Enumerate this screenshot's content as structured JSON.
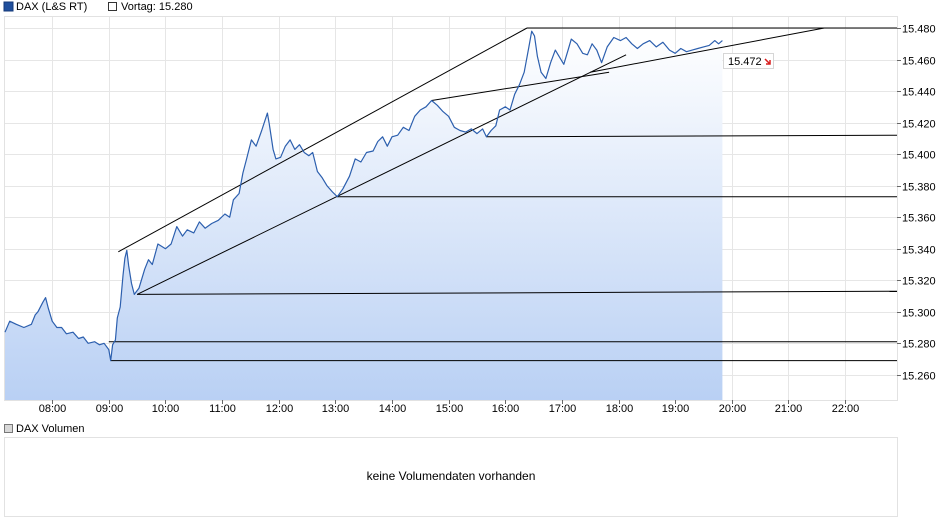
{
  "legend": {
    "main_label": "DAX (L&S RT)",
    "prev_label": "Vortag: 15.280",
    "volume_label": "DAX Volumen",
    "main_color": "#1f4e9c"
  },
  "volume": {
    "message": "keine Volumendaten vorhanden"
  },
  "chart_data": {
    "type": "line",
    "title": "",
    "xlabel": "",
    "ylabel": "",
    "x_ticks": [
      "08:00",
      "09:00",
      "10:00",
      "11:00",
      "12:00",
      "13:00",
      "14:00",
      "15:00",
      "16:00",
      "17:00",
      "18:00",
      "19:00",
      "20:00",
      "21:00",
      "22:00"
    ],
    "y_ticks": [
      "15.260",
      "15.280",
      "15.300",
      "15.320",
      "15.340",
      "15.360",
      "15.380",
      "15.400",
      "15.420",
      "15.440",
      "15.460",
      "15.480"
    ],
    "xlim": [
      "07:10",
      "22:55"
    ],
    "ylim": [
      15.244,
      15.487
    ],
    "grid": true,
    "area_fill": true,
    "line_color": "#2c5fae",
    "fill_color_top": "#ffffff",
    "fill_color_bottom": "#b9d0f4",
    "last_value_label": "15.472",
    "last_value_time": "19:50",
    "series": [
      {
        "values": [
          [
            "07:10",
            15.287
          ],
          [
            "07:15",
            15.294
          ],
          [
            "07:22",
            15.292
          ],
          [
            "07:30",
            15.29
          ],
          [
            "07:38",
            15.292
          ],
          [
            "07:42",
            15.298
          ],
          [
            "07:45",
            15.3
          ],
          [
            "07:50",
            15.306
          ],
          [
            "07:53",
            15.309
          ],
          [
            "07:56",
            15.302
          ],
          [
            "08:00",
            15.294
          ],
          [
            "08:05",
            15.29
          ],
          [
            "08:10",
            15.29
          ],
          [
            "08:15",
            15.286
          ],
          [
            "08:22",
            15.287
          ],
          [
            "08:28",
            15.283
          ],
          [
            "08:33",
            15.284
          ],
          [
            "08:38",
            15.28
          ],
          [
            "08:45",
            15.281
          ],
          [
            "08:50",
            15.279
          ],
          [
            "08:55",
            15.28
          ],
          [
            "09:00",
            15.276
          ],
          [
            "09:02",
            15.269
          ],
          [
            "09:04",
            15.279
          ],
          [
            "09:07",
            15.282
          ],
          [
            "09:09",
            15.296
          ],
          [
            "09:12",
            15.303
          ],
          [
            "09:15",
            15.323
          ],
          [
            "09:17",
            15.334
          ],
          [
            "09:19",
            15.339
          ],
          [
            "09:21",
            15.329
          ],
          [
            "09:24",
            15.318
          ],
          [
            "09:27",
            15.311
          ],
          [
            "09:32",
            15.315
          ],
          [
            "09:38",
            15.327
          ],
          [
            "09:42",
            15.333
          ],
          [
            "09:46",
            15.33
          ],
          [
            "09:52",
            15.343
          ],
          [
            "10:00",
            15.34
          ],
          [
            "10:06",
            15.343
          ],
          [
            "10:12",
            15.354
          ],
          [
            "10:18",
            15.348
          ],
          [
            "10:23",
            15.352
          ],
          [
            "10:30",
            15.35
          ],
          [
            "10:36",
            15.357
          ],
          [
            "10:42",
            15.353
          ],
          [
            "10:49",
            15.356
          ],
          [
            "10:56",
            15.358
          ],
          [
            "11:03",
            15.362
          ],
          [
            "11:08",
            15.36
          ],
          [
            "11:12",
            15.371
          ],
          [
            "11:18",
            15.375
          ],
          [
            "11:22",
            15.388
          ],
          [
            "11:26",
            15.397
          ],
          [
            "11:31",
            15.409
          ],
          [
            "11:36",
            15.405
          ],
          [
            "11:42",
            15.415
          ],
          [
            "11:48",
            15.426
          ],
          [
            "11:50",
            15.419
          ],
          [
            "11:54",
            15.403
          ],
          [
            "11:57",
            15.397
          ],
          [
            "12:02",
            15.398
          ],
          [
            "12:07",
            15.405
          ],
          [
            "12:12",
            15.409
          ],
          [
            "12:17",
            15.403
          ],
          [
            "12:22",
            15.406
          ],
          [
            "12:27",
            15.401
          ],
          [
            "12:32",
            15.399
          ],
          [
            "12:36",
            15.401
          ],
          [
            "12:41",
            15.389
          ],
          [
            "12:46",
            15.385
          ],
          [
            "12:51",
            15.38
          ],
          [
            "12:57",
            15.376
          ],
          [
            "13:02",
            15.373
          ],
          [
            "13:08",
            15.378
          ],
          [
            "13:15",
            15.386
          ],
          [
            "13:21",
            15.397
          ],
          [
            "13:27",
            15.395
          ],
          [
            "13:33",
            15.401
          ],
          [
            "13:40",
            15.402
          ],
          [
            "13:45",
            15.408
          ],
          [
            "13:50",
            15.411
          ],
          [
            "13:55",
            15.405
          ],
          [
            "14:00",
            15.411
          ],
          [
            "14:06",
            15.412
          ],
          [
            "14:12",
            15.417
          ],
          [
            "14:18",
            15.415
          ],
          [
            "14:24",
            15.424
          ],
          [
            "14:30",
            15.428
          ],
          [
            "14:36",
            15.43
          ],
          [
            "14:42",
            15.434
          ],
          [
            "14:48",
            15.431
          ],
          [
            "14:54",
            15.427
          ],
          [
            "15:00",
            15.424
          ],
          [
            "15:06",
            15.417
          ],
          [
            "15:12",
            15.415
          ],
          [
            "15:18",
            15.414
          ],
          [
            "15:24",
            15.416
          ],
          [
            "15:30",
            15.413
          ],
          [
            "15:36",
            15.416
          ],
          [
            "15:40",
            15.411
          ],
          [
            "15:45",
            15.415
          ],
          [
            "15:50",
            15.418
          ],
          [
            "15:54",
            15.428
          ],
          [
            "16:00",
            15.43
          ],
          [
            "16:05",
            15.428
          ],
          [
            "16:10",
            15.438
          ],
          [
            "16:15",
            15.444
          ],
          [
            "16:20",
            15.452
          ],
          [
            "16:25",
            15.468
          ],
          [
            "16:28",
            15.478
          ],
          [
            "16:31",
            15.475
          ],
          [
            "16:34",
            15.462
          ],
          [
            "16:38",
            15.452
          ],
          [
            "16:43",
            15.448
          ],
          [
            "16:48",
            15.458
          ],
          [
            "16:53",
            15.466
          ],
          [
            "16:57",
            15.462
          ],
          [
            "17:02",
            15.457
          ],
          [
            "17:06",
            15.465
          ],
          [
            "17:10",
            15.473
          ],
          [
            "17:16",
            15.47
          ],
          [
            "17:22",
            15.464
          ],
          [
            "17:27",
            15.463
          ],
          [
            "17:32",
            15.47
          ],
          [
            "17:37",
            15.466
          ],
          [
            "17:42",
            15.458
          ],
          [
            "17:48",
            15.468
          ],
          [
            "17:55",
            15.474
          ],
          [
            "18:02",
            15.472
          ],
          [
            "18:08",
            15.474
          ],
          [
            "18:14",
            15.47
          ],
          [
            "18:20",
            15.467
          ],
          [
            "18:26",
            15.47
          ],
          [
            "18:33",
            15.472
          ],
          [
            "18:40",
            15.468
          ],
          [
            "18:47",
            15.471
          ],
          [
            "18:54",
            15.466
          ],
          [
            "19:00",
            15.464
          ],
          [
            "19:06",
            15.467
          ],
          [
            "19:12",
            15.465
          ],
          [
            "19:18",
            15.466
          ],
          [
            "19:24",
            15.467
          ],
          [
            "19:30",
            15.468
          ],
          [
            "19:36",
            15.469
          ],
          [
            "19:42",
            15.472
          ],
          [
            "19:46",
            15.47
          ],
          [
            "19:50",
            15.472
          ]
        ]
      }
    ],
    "trendlines": [
      {
        "from": [
          "09:10",
          15.338
        ],
        "to": [
          "16:23",
          15.48
        ]
      },
      {
        "from": [
          "09:30",
          15.311
        ],
        "to": [
          "18:08",
          15.463
        ]
      },
      {
        "from": [
          "09:30",
          15.311
        ],
        "to": [
          "22:55",
          15.313
        ]
      },
      {
        "from": [
          "09:00",
          15.281
        ],
        "to": [
          "22:55",
          15.281
        ]
      },
      {
        "from": [
          "09:02",
          15.269
        ],
        "to": [
          "22:55",
          15.269
        ]
      },
      {
        "from": [
          "13:02",
          15.373
        ],
        "to": [
          "22:55",
          15.373
        ]
      },
      {
        "from": [
          "15:40",
          15.411
        ],
        "to": [
          "22:55",
          15.412
        ]
      },
      {
        "from": [
          "14:42",
          15.434
        ],
        "to": [
          "17:50",
          15.452
        ]
      },
      {
        "from": [
          "17:30",
          15.452
        ],
        "to": [
          "21:38",
          15.48
        ]
      },
      {
        "from": [
          "16:23",
          15.48
        ],
        "to": [
          "22:55",
          15.48
        ]
      }
    ]
  }
}
